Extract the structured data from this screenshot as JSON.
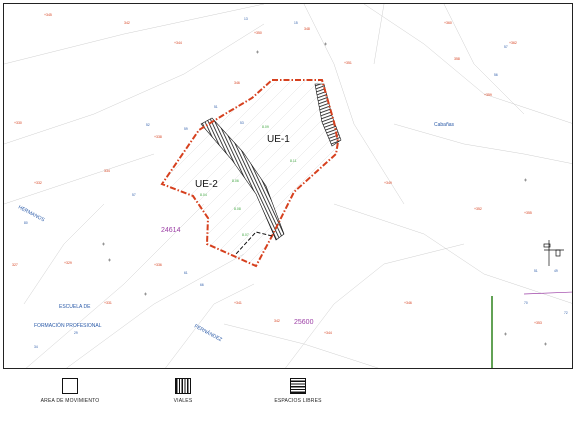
{
  "map": {
    "zones": [
      {
        "id": "ue1",
        "label": "UE-1"
      },
      {
        "id": "ue2",
        "label": "UE-2"
      }
    ],
    "places": {
      "escuela_line1": "ESCUELA   DE",
      "escuela_line2": "FORMACIÓN PROFESIONAL",
      "hermanos": "HERMANOS",
      "fernandez": "FERNÁNDEZ",
      "cabanas": "Cabañas",
      "parcel_a": "24614",
      "parcel_b": "25600"
    },
    "colors": {
      "boundary": "#d6401e",
      "hatch": "#111111",
      "street_label": "#2a5aa8",
      "parcel_label": "#9c3fa6",
      "spot_height": "#d6401e",
      "green_label": "#3fa63f",
      "green_line": "#3a8a2a"
    }
  },
  "legend": {
    "items": [
      {
        "label": "AREA DE MOVIMIENTO",
        "symbol": "empty"
      },
      {
        "label": "VIALES",
        "symbol": "vertical-hatch"
      },
      {
        "label": "ESPACIOS LIBRES",
        "symbol": "horizontal-hatch"
      }
    ]
  }
}
